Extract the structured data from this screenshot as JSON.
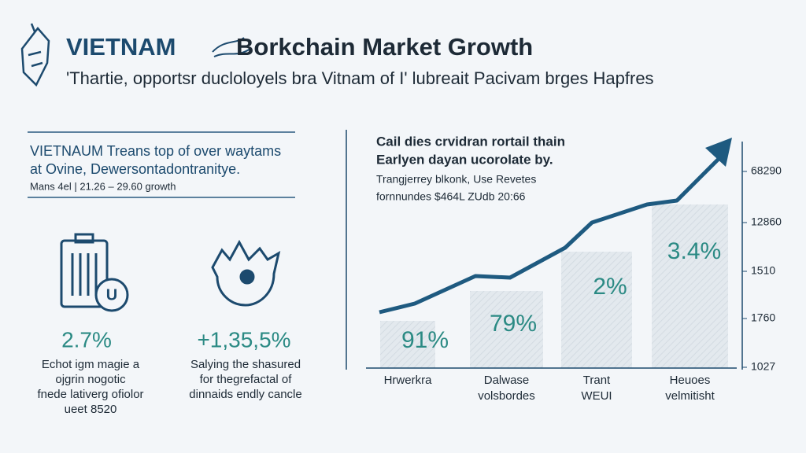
{
  "header": {
    "brand": "VIETNAM",
    "title": "Borkchain Market Growth",
    "subtitle": "'Thartie, opportsr ducloloyels bra Vitnam of I' lubreait Pacivam brges Hapfres"
  },
  "left_panel": {
    "heading": [
      "VIETNAUM Treans top of over waytams",
      "at Ovine, Dewersontadontranitye."
    ],
    "note": "Mans 4el | 21.26 – 29.60 growth",
    "stats": [
      {
        "value": "2.7%",
        "caption": [
          "Echot igm magie a",
          "ojgrin nogotic",
          "fnede lativerg ofiolor",
          "ueet 8520"
        ]
      },
      {
        "value": "+1,35,5%",
        "caption": [
          "Salying the shasured",
          "for thegrefactal of",
          "dinnaids endly cancle"
        ]
      }
    ]
  },
  "right_panel": {
    "heading": [
      "Cail dies crvidran rortail thain",
      "Earlyen dayan ucorolate by."
    ],
    "text": [
      "Trangjerrey blkonk, Use Revetes",
      "fornnundes $464L ZUdb 20:66"
    ],
    "bars": [
      {
        "label": "91%",
        "category": [
          "Hrwerkra"
        ]
      },
      {
        "label": "79%",
        "category": [
          "Dalwase",
          "volsbordes"
        ]
      },
      {
        "label": "2%",
        "category": [
          "Trant",
          "WEUI"
        ]
      },
      {
        "label": "3.4%",
        "category": [
          "Heuoes",
          "velmitisht"
        ]
      }
    ],
    "axis_labels": [
      "68290",
      "12860",
      "1510",
      "1760",
      "1027"
    ]
  }
}
